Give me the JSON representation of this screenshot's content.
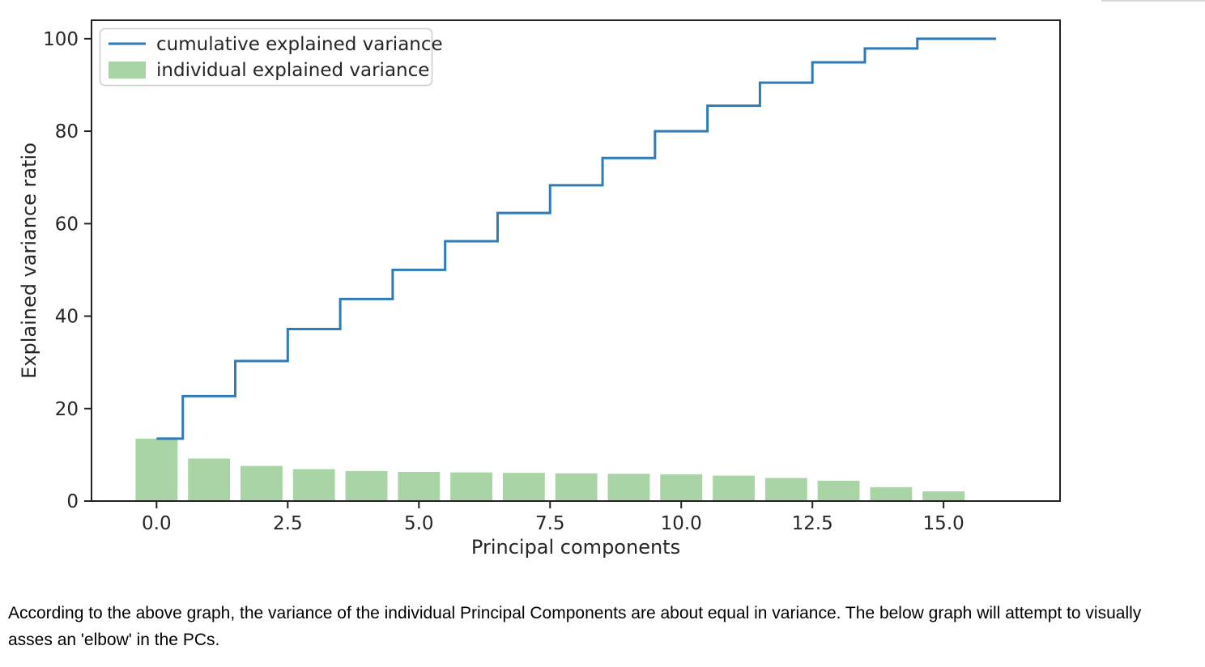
{
  "page": {
    "text_lines": [
      "According to the above graph, the variance of the individual Principal Components are about equal in variance. The below graph will attempt to visually",
      "asses an 'elbow' in the PCs."
    ],
    "top_edge_color": "#d9d9d9"
  },
  "chart_data": {
    "type": "bar",
    "title": "",
    "xlabel": "Principal components",
    "ylabel": "Explained variance ratio",
    "xlim": [
      -1.24,
      17.22
    ],
    "ylim": [
      0,
      104
    ],
    "grid": false,
    "bar_width": 0.8,
    "step_style": "mid",
    "step_end_x": 16,
    "x": [
      0,
      1,
      2,
      3,
      4,
      5,
      6,
      7,
      8,
      9,
      10,
      11,
      12,
      13,
      14,
      15
    ],
    "series": [
      {
        "name": "cumulative explained variance",
        "type": "step",
        "color": "#2e7bb8",
        "values": [
          13.5,
          22.7,
          30.3,
          37.2,
          43.7,
          50.0,
          56.2,
          62.3,
          68.3,
          74.2,
          80.0,
          85.5,
          90.5,
          94.9,
          97.9,
          100.0
        ]
      },
      {
        "name": "individual explained variance",
        "type": "bar",
        "color": "#a9d4a5",
        "values": [
          13.5,
          9.2,
          7.6,
          6.9,
          6.5,
          6.3,
          6.2,
          6.1,
          6.0,
          5.9,
          5.8,
          5.5,
          5.0,
          4.4,
          3.0,
          2.1
        ]
      }
    ],
    "xticks": {
      "values": [
        0,
        2.5,
        5,
        7.5,
        10,
        12.5,
        15
      ],
      "labels": [
        "0.0",
        "2.5",
        "5.0",
        "7.5",
        "10.0",
        "12.5",
        "15.0"
      ]
    },
    "yticks": {
      "values": [
        0,
        20,
        40,
        60,
        80,
        100
      ],
      "labels": [
        "0",
        "20",
        "40",
        "60",
        "80",
        "100"
      ]
    },
    "legend": {
      "position": "upper left"
    },
    "axis_color": "#222222",
    "text_color": "#262626",
    "legend_border_color": "#cccccc"
  }
}
